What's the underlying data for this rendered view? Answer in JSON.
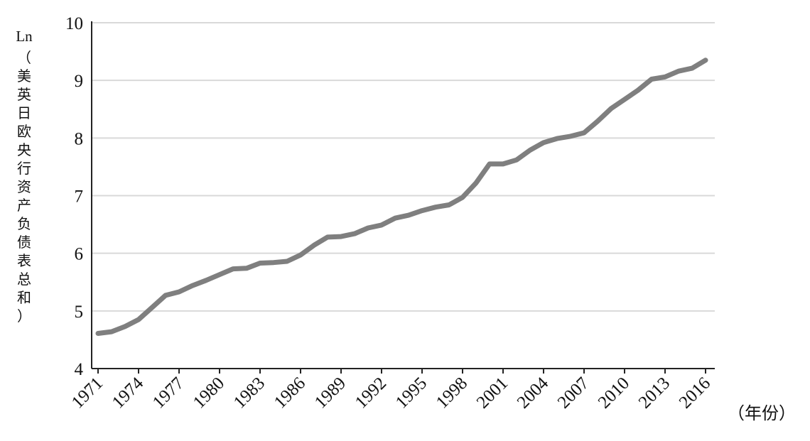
{
  "chart_data": {
    "type": "line",
    "title": "",
    "ylabel_prefix": "Ln",
    "ylabel_text": "（美英日欧央行资产负债表总和）",
    "xlabel": "（年份）",
    "ylim": [
      4,
      10
    ],
    "yticks": [
      "4",
      "5",
      "6",
      "7",
      "8",
      "9",
      "10"
    ],
    "xlim": [
      1971,
      2016
    ],
    "xticks": [
      "1971",
      "1974",
      "1977",
      "1980",
      "1983",
      "1986",
      "1989",
      "1992",
      "1995",
      "1998",
      "2001",
      "2004",
      "2007",
      "2010",
      "2013",
      "2016"
    ],
    "grid": true,
    "line_color": "#7f7f7f",
    "grid_color": "#d9d9d9",
    "series": [
      {
        "x": [
          1971,
          1972,
          1973,
          1974,
          1975,
          1976,
          1977,
          1978,
          1979,
          1980,
          1981,
          1982,
          1983,
          1984,
          1985,
          1986,
          1987,
          1988,
          1989,
          1990,
          1991,
          1992,
          1993,
          1994,
          1995,
          1996,
          1997,
          1998,
          1999,
          2000,
          2001,
          2002,
          2003,
          2004,
          2005,
          2006,
          2007,
          2008,
          2009,
          2010,
          2011,
          2012,
          2013,
          2014,
          2015,
          2016
        ],
        "values": [
          4.61,
          4.64,
          4.73,
          4.85,
          5.06,
          5.27,
          5.33,
          5.44,
          5.53,
          5.63,
          5.73,
          5.74,
          5.83,
          5.84,
          5.86,
          5.97,
          6.14,
          6.28,
          6.29,
          6.34,
          6.44,
          6.49,
          6.61,
          6.66,
          6.74,
          6.8,
          6.84,
          6.97,
          7.22,
          7.55,
          7.55,
          7.62,
          7.79,
          7.92,
          7.99,
          8.03,
          8.09,
          8.29,
          8.51,
          8.67,
          8.83,
          9.02,
          9.06,
          9.16,
          9.21,
          9.35
        ]
      }
    ]
  }
}
